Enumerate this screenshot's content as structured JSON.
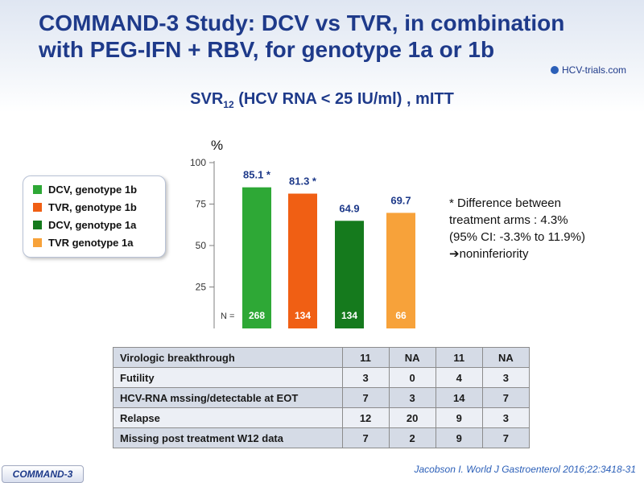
{
  "title": {
    "line1": "COMMAND-3 Study: DCV vs TVR, in combination",
    "line2": "with PEG-IFN + RBV, for genotype 1a or 1b"
  },
  "logo": {
    "text": "HCV-trials.com"
  },
  "chart_title": {
    "pre": "SVR",
    "sub": "12",
    "post": " (HCV RNA < 25 IU/ml) , mITT"
  },
  "chart_data": {
    "type": "bar",
    "ylabel": "%",
    "ylim": [
      0,
      100
    ],
    "yticks": [
      25,
      50,
      75,
      100
    ],
    "n_prefix": "N =",
    "categories": [
      "DCV, genotype 1b",
      "TVR, genotype 1b",
      "DCV, genotype 1a",
      "TVR genotype 1a"
    ],
    "values": [
      85.1,
      81.3,
      64.9,
      69.7
    ],
    "value_labels": [
      "85.1 *",
      "81.3 *",
      "64.9",
      "69.7"
    ],
    "n_values": [
      "268",
      "134",
      "134",
      "66"
    ],
    "colors": [
      "#2ea836",
      "#f05f14",
      "#157a1d",
      "#f7a23a"
    ]
  },
  "legend": [
    {
      "label": "DCV, genotype 1b",
      "color": "#2ea836"
    },
    {
      "label": "TVR, genotype 1b",
      "color": "#f05f14"
    },
    {
      "label": "DCV, genotype 1a",
      "color": "#157a1d"
    },
    {
      "label": "TVR genotype 1a",
      "color": "#f7a23a"
    }
  ],
  "note": {
    "line1": "* Difference between",
    "line2": "treatment arms : 4.3%",
    "line3": "(95% CI: -3.3% to 11.9%)",
    "arrow": "➔",
    "line4": "noninferiority"
  },
  "table": [
    {
      "label": "Virologic breakthrough",
      "values": [
        "11",
        "NA",
        "11",
        "NA"
      ]
    },
    {
      "label": "Futility",
      "values": [
        "3",
        "0",
        "4",
        "3"
      ]
    },
    {
      "label": "HCV-RNA mssing/detectable at EOT",
      "values": [
        "7",
        "3",
        "14",
        "7"
      ]
    },
    {
      "label": "Relapse",
      "values": [
        "12",
        "20",
        "9",
        "3"
      ]
    },
    {
      "label": "Missing post treatment W12 data",
      "values": [
        "7",
        "2",
        "9",
        "7"
      ]
    }
  ],
  "badge": "COMMAND-3",
  "citation": "Jacobson I. World J Gastroenterol 2016;22:3418-31"
}
